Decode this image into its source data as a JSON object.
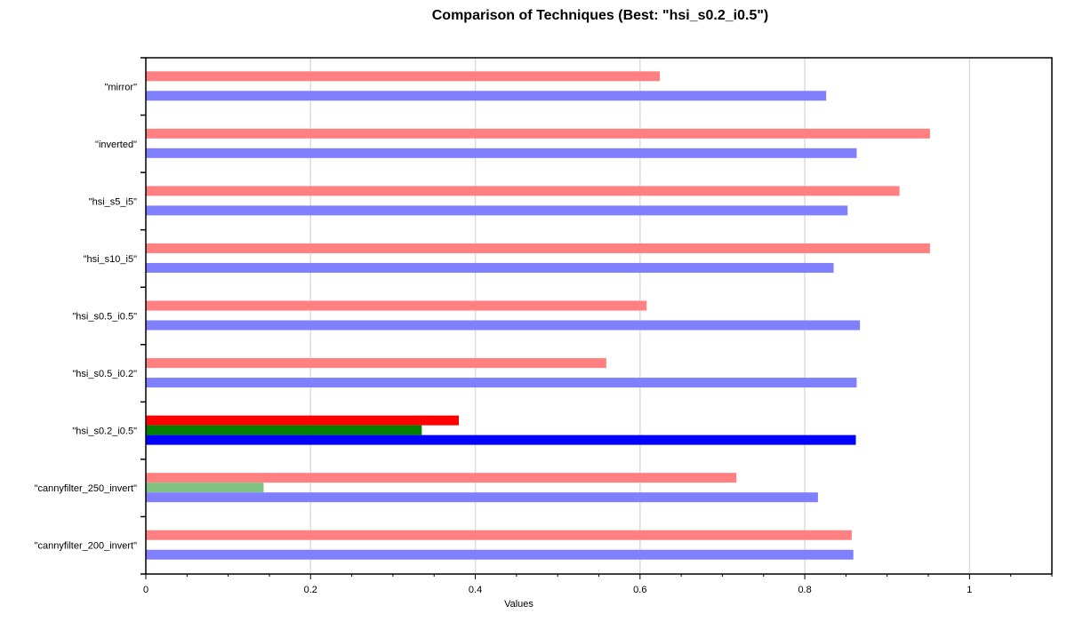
{
  "chart_data": {
    "type": "bar",
    "orientation": "horizontal",
    "title": "Comparison of Techniques (Best: \"hsi_s0.2_i0.5\")",
    "xlabel": "Values",
    "ylabel": "",
    "xlim": [
      0,
      1.1
    ],
    "x_ticks": [
      "0",
      "0.2",
      "0.4",
      "0.6",
      "0.8",
      "1"
    ],
    "grid": true,
    "legend": "none",
    "categories": [
      "\"mirror\"",
      "\"inverted\"",
      "\"hsi_s5_i5\"",
      "\"hsi_s10_i5\"",
      "\"hsi_s0.5_i0.5\"",
      "\"hsi_s0.5_i0.2\"",
      "\"hsi_s0.2_i0.5\"",
      "\"cannyfilter_250_invert\"",
      "\"cannyfilter_200_invert\""
    ],
    "series": [
      {
        "color": "#ff8080",
        "best_color": "#ff0000",
        "values": [
          0.624,
          0.952,
          0.915,
          0.952,
          0.608,
          0.559,
          0.38,
          0.717,
          0.857
        ]
      },
      {
        "color": "#80c080",
        "best_color": "#008000",
        "values": [
          0,
          0,
          0,
          0,
          0,
          0,
          0.335,
          0.143,
          0
        ]
      },
      {
        "color": "#8080ff",
        "best_color": "#0000ff",
        "values": [
          0.826,
          0.863,
          0.852,
          0.835,
          0.867,
          0.863,
          0.862,
          0.816,
          0.859
        ]
      }
    ],
    "best_category": "\"hsi_s0.2_i0.5\""
  }
}
